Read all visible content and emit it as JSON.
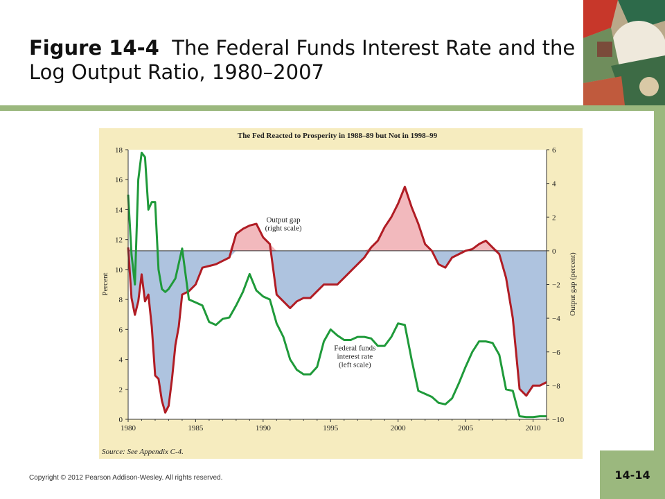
{
  "slide": {
    "figure_label": "Figure 14-4",
    "title_text": "The Federal Funds Interest Rate and the Log Output Ratio, 1980–2007",
    "copyright": "Copyright © 2012 Pearson Addison-Wesley. All rights reserved.",
    "slide_number": "14-14"
  },
  "chart_data": {
    "type": "line",
    "title": "The Fed Reacted to Prosperity in 1988–89 but Not in 1998–99",
    "ylabel_left": "Percent",
    "ylabel_right": "Output gap (percent)",
    "xlim": [
      1980,
      2011
    ],
    "ylim_left": [
      0,
      18
    ],
    "ylim_right": [
      -10,
      6
    ],
    "x_ticks": [
      "1980",
      "1985",
      "1990",
      "1995",
      "2000",
      "2005",
      "2010"
    ],
    "x_tick_values": [
      1980,
      1985,
      1990,
      1995,
      2000,
      2005,
      2010
    ],
    "left_ticks": [
      "0",
      "2",
      "4",
      "6",
      "8",
      "10",
      "12",
      "14",
      "16",
      "18"
    ],
    "left_tick_values": [
      0,
      2,
      4,
      6,
      8,
      10,
      12,
      14,
      16,
      18
    ],
    "right_ticks": [
      "6",
      "4",
      "2",
      "0",
      "−2",
      "−4",
      "−6",
      "−8",
      "−10"
    ],
    "right_tick_values": [
      6,
      4,
      2,
      0,
      -2,
      -4,
      -6,
      -8,
      -10
    ],
    "source": "Source: See Appendix C-4.",
    "colors": {
      "background": "#f6ecbf",
      "plot_bg": "#ffffff",
      "gap_line": "#b01c24",
      "ffr_line": "#1f9a3a",
      "positive_fill": "#f2b9bd",
      "negative_fill": "#aec3df",
      "zero_line": "#333333"
    },
    "series": [
      {
        "name": "Output gap",
        "label": [
          "Output gap",
          "(right scale)"
        ],
        "axis": "right",
        "x": [
          1980.0,
          1980.25,
          1980.5,
          1980.75,
          1981.0,
          1981.25,
          1981.5,
          1981.75,
          1982.0,
          1982.25,
          1982.5,
          1982.75,
          1983.0,
          1983.25,
          1983.5,
          1983.75,
          1984.0,
          1984.5,
          1985.0,
          1985.5,
          1986.0,
          1986.5,
          1987.0,
          1987.5,
          1988.0,
          1988.5,
          1989.0,
          1989.5,
          1990.0,
          1990.5,
          1991.0,
          1991.5,
          1992.0,
          1992.5,
          1993.0,
          1993.5,
          1994.0,
          1994.5,
          1995.0,
          1995.5,
          1996.0,
          1996.5,
          1997.0,
          1997.5,
          1998.0,
          1998.5,
          1999.0,
          1999.5,
          2000.0,
          2000.5,
          2001.0,
          2001.5,
          2002.0,
          2002.5,
          2003.0,
          2003.5,
          2004.0,
          2004.5,
          2005.0,
          2005.5,
          2006.0,
          2006.5,
          2007.0,
          2007.5,
          2008.0,
          2008.5,
          2009.0,
          2009.5,
          2010.0,
          2010.5,
          2011.0
        ],
        "values": [
          0.2,
          -2.8,
          -3.8,
          -3.0,
          -1.4,
          -3.0,
          -2.6,
          -4.5,
          -7.4,
          -7.6,
          -8.9,
          -9.6,
          -9.2,
          -7.6,
          -5.6,
          -4.5,
          -2.6,
          -2.4,
          -2.0,
          -1.0,
          -0.9,
          -0.8,
          -0.6,
          -0.4,
          1.0,
          1.3,
          1.5,
          1.6,
          0.8,
          0.4,
          -2.6,
          -3.0,
          -3.4,
          -3.0,
          -2.8,
          -2.8,
          -2.4,
          -2.0,
          -2.0,
          -2.0,
          -1.6,
          -1.2,
          -0.8,
          -0.4,
          0.2,
          0.6,
          1.4,
          2.0,
          2.8,
          3.8,
          2.6,
          1.6,
          0.4,
          0.0,
          -0.8,
          -1.0,
          -0.4,
          -0.2,
          0.0,
          0.1,
          0.4,
          0.6,
          0.2,
          -0.2,
          -1.6,
          -4.0,
          -8.2,
          -8.6,
          -8.0,
          -8.0,
          -7.8
        ]
      },
      {
        "name": "Federal funds interest rate",
        "label": [
          "Federal funds",
          "interest rate",
          "(left scale)"
        ],
        "axis": "left",
        "x": [
          1980.0,
          1980.25,
          1980.5,
          1980.75,
          1981.0,
          1981.25,
          1981.5,
          1981.75,
          1982.0,
          1982.25,
          1982.5,
          1982.75,
          1983.0,
          1983.5,
          1984.0,
          1984.5,
          1985.0,
          1985.5,
          1986.0,
          1986.5,
          1987.0,
          1987.5,
          1988.0,
          1988.5,
          1989.0,
          1989.5,
          1990.0,
          1990.5,
          1991.0,
          1991.5,
          1992.0,
          1992.5,
          1993.0,
          1993.5,
          1994.0,
          1994.5,
          1995.0,
          1995.5,
          1996.0,
          1996.5,
          1997.0,
          1997.5,
          1998.0,
          1998.5,
          1999.0,
          1999.5,
          2000.0,
          2000.5,
          2001.0,
          2001.5,
          2002.0,
          2002.5,
          2003.0,
          2003.5,
          2004.0,
          2004.5,
          2005.0,
          2005.5,
          2006.0,
          2006.5,
          2007.0,
          2007.5,
          2008.0,
          2008.5,
          2009.0,
          2009.5,
          2010.0,
          2010.5,
          2011.0
        ],
        "values": [
          15.0,
          11.0,
          9.0,
          16.0,
          17.8,
          17.5,
          14.0,
          14.5,
          14.5,
          10.0,
          8.7,
          8.5,
          8.7,
          9.4,
          11.4,
          8.0,
          7.8,
          7.6,
          6.5,
          6.3,
          6.7,
          6.8,
          7.6,
          8.5,
          9.7,
          8.6,
          8.2,
          8.0,
          6.4,
          5.5,
          4.0,
          3.3,
          3.0,
          3.0,
          3.5,
          5.2,
          6.0,
          5.6,
          5.3,
          5.3,
          5.5,
          5.5,
          5.4,
          4.9,
          4.9,
          5.5,
          6.4,
          6.3,
          4.0,
          1.9,
          1.7,
          1.5,
          1.1,
          1.0,
          1.4,
          2.4,
          3.5,
          4.5,
          5.2,
          5.2,
          5.1,
          4.3,
          2.0,
          1.9,
          0.2,
          0.15,
          0.15,
          0.2,
          0.2
        ]
      }
    ]
  }
}
